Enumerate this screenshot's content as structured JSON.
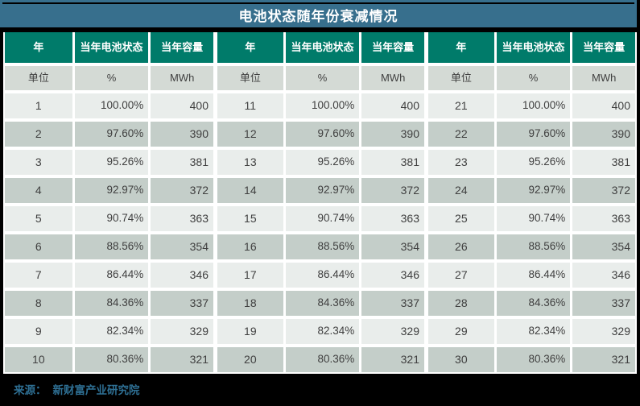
{
  "title": "电池状态随年份衰减情况",
  "source": {
    "label": "来源：",
    "name": "新财富产业研究院"
  },
  "table": {
    "group_headers": [
      "年",
      "当年电池状态",
      "当年容量"
    ],
    "unit_labels": [
      "单位",
      "%",
      "MWh"
    ],
    "num_groups": 3
  },
  "colors": {
    "banner": "#376F8D",
    "header_green": "#007B6A",
    "row_light": "#E9EDEB",
    "row_dark": "#C4CEC9",
    "row_unit": "#D4DAD5",
    "cell_text": "#404040",
    "source_text": "#2E6F93",
    "background": "#000000",
    "gap": "#FFFFFF"
  },
  "chart_data": {
    "type": "table",
    "title": "电池状态随年份衰减情况",
    "columns": [
      "年",
      "当年电池状态 (%)",
      "当年容量 (MWh)"
    ],
    "layout": "three groups of 10 years side by side",
    "rows": [
      [
        1,
        "100.00%",
        400
      ],
      [
        2,
        "97.60%",
        390
      ],
      [
        3,
        "95.26%",
        381
      ],
      [
        4,
        "92.97%",
        372
      ],
      [
        5,
        "90.74%",
        363
      ],
      [
        6,
        "88.56%",
        354
      ],
      [
        7,
        "86.44%",
        346
      ],
      [
        8,
        "84.36%",
        337
      ],
      [
        9,
        "82.34%",
        329
      ],
      [
        10,
        "80.36%",
        321
      ],
      [
        11,
        "100.00%",
        400
      ],
      [
        12,
        "97.60%",
        390
      ],
      [
        13,
        "95.26%",
        381
      ],
      [
        14,
        "92.97%",
        372
      ],
      [
        15,
        "90.74%",
        363
      ],
      [
        16,
        "88.56%",
        354
      ],
      [
        17,
        "86.44%",
        346
      ],
      [
        18,
        "84.36%",
        337
      ],
      [
        19,
        "82.34%",
        329
      ],
      [
        20,
        "80.36%",
        321
      ],
      [
        21,
        "100.00%",
        400
      ],
      [
        22,
        "97.60%",
        390
      ],
      [
        23,
        "95.26%",
        381
      ],
      [
        24,
        "92.97%",
        372
      ],
      [
        25,
        "90.74%",
        363
      ],
      [
        26,
        "88.56%",
        354
      ],
      [
        27,
        "86.44%",
        346
      ],
      [
        28,
        "84.36%",
        337
      ],
      [
        29,
        "82.34%",
        329
      ],
      [
        30,
        "80.36%",
        321
      ]
    ]
  }
}
